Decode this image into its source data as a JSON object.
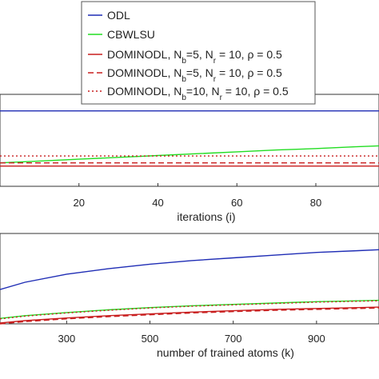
{
  "colors": {
    "ODL": "#1f2db5",
    "CBWLSU": "#22dd22",
    "DOMINODL_1": "#c81e1e",
    "DOMINODL_2": "#c81e1e",
    "DOMINODL_3": "#c81e1e",
    "frame": "#333333",
    "grid": "#e6e6e6"
  },
  "legend": {
    "placement": "top-center",
    "entries": [
      {
        "key": "ODL",
        "style": "solid",
        "text": "ODL"
      },
      {
        "key": "CBWLSU",
        "style": "solid",
        "text": "CBWLSU"
      },
      {
        "key": "DOMINODL_1",
        "style": "solid",
        "text": "DOMINODL, N_b=5, N_r = 10, ρ = 0.5"
      },
      {
        "key": "DOMINODL_2",
        "style": "dashed",
        "text": "DOMINODL, N_b=5, N_r = 10, ρ = 0.5"
      },
      {
        "key": "DOMINODL_3",
        "style": "dotted",
        "text": "DOMINODL, N_b=10, N_r = 10, ρ = 0.5"
      }
    ]
  },
  "chart_data": [
    {
      "type": "line",
      "xlabel": "iterations (i)",
      "ylabel": "",
      "title": "",
      "xlim": [
        0,
        96
      ],
      "ylim": [
        0,
        10
      ],
      "xticks": [
        20,
        40,
        60,
        80
      ],
      "grid": false,
      "series": [
        {
          "name": "ODL",
          "x": [
            0,
            20,
            40,
            60,
            80,
            96
          ],
          "values": [
            8.2,
            8.2,
            8.2,
            8.2,
            8.2,
            8.2
          ]
        },
        {
          "name": "CBWLSU",
          "x": [
            0,
            10,
            20,
            30,
            40,
            50,
            60,
            70,
            80,
            90,
            96
          ],
          "values": [
            2.55,
            2.75,
            2.95,
            3.15,
            3.35,
            3.55,
            3.75,
            3.95,
            4.1,
            4.3,
            4.4
          ]
        },
        {
          "name": "DOMINODL, N_b=5, N_r = 10, ρ = 0.5",
          "x": [
            0,
            20,
            40,
            60,
            80,
            96
          ],
          "values": [
            2.2,
            2.2,
            2.2,
            2.2,
            2.2,
            2.2
          ]
        },
        {
          "name": "DOMINODL, N_b=5, N_r = 10, ρ = 0.5",
          "x": [
            0,
            20,
            40,
            60,
            80,
            96
          ],
          "values": [
            2.55,
            2.55,
            2.55,
            2.55,
            2.55,
            2.55
          ]
        },
        {
          "name": "DOMINODL, N_b=10, N_r = 10, ρ = 0.5",
          "x": [
            0,
            20,
            40,
            60,
            80,
            96
          ],
          "values": [
            3.3,
            3.3,
            3.3,
            3.3,
            3.3,
            3.3
          ]
        }
      ]
    },
    {
      "type": "line",
      "xlabel": "number of trained atoms (k)",
      "ylabel": "",
      "title": "",
      "xlim": [
        140,
        1050
      ],
      "ylim": [
        0,
        10
      ],
      "xticks": [
        300,
        500,
        700,
        900
      ],
      "grid": false,
      "series": [
        {
          "name": "ODL",
          "x": [
            140,
            200,
            300,
            400,
            500,
            600,
            700,
            800,
            900,
            1000,
            1050
          ],
          "values": [
            3.8,
            4.6,
            5.5,
            6.1,
            6.6,
            7.0,
            7.3,
            7.6,
            7.9,
            8.1,
            8.2
          ]
        },
        {
          "name": "CBWLSU",
          "x": [
            140,
            200,
            300,
            400,
            500,
            600,
            700,
            800,
            900,
            1000,
            1050
          ],
          "values": [
            0.6,
            0.9,
            1.25,
            1.55,
            1.8,
            2.0,
            2.15,
            2.3,
            2.45,
            2.55,
            2.6
          ]
        },
        {
          "name": "DOMINODL, N_b=5, N_r = 10, ρ = 0.5",
          "x": [
            140,
            200,
            300,
            400,
            500,
            600,
            700,
            800,
            900,
            1000,
            1050
          ],
          "values": [
            0.1,
            0.35,
            0.65,
            0.9,
            1.1,
            1.3,
            1.45,
            1.6,
            1.7,
            1.8,
            1.85
          ]
        },
        {
          "name": "DOMINODL, N_b=5, N_r = 10, ρ = 0.5",
          "x": [
            140,
            200,
            300,
            400,
            500,
            600,
            700,
            800,
            900,
            1000,
            1050
          ],
          "values": [
            0.0,
            0.25,
            0.55,
            0.8,
            1.0,
            1.2,
            1.35,
            1.5,
            1.6,
            1.7,
            1.75
          ]
        },
        {
          "name": "DOMINODL, N_b=10, N_r = 10, ρ = 0.5",
          "x": [
            140,
            200,
            300,
            400,
            500,
            600,
            700,
            800,
            900,
            1000,
            1050
          ],
          "values": [
            0.55,
            0.85,
            1.2,
            1.5,
            1.75,
            1.95,
            2.1,
            2.25,
            2.4,
            2.5,
            2.55
          ]
        }
      ]
    }
  ]
}
